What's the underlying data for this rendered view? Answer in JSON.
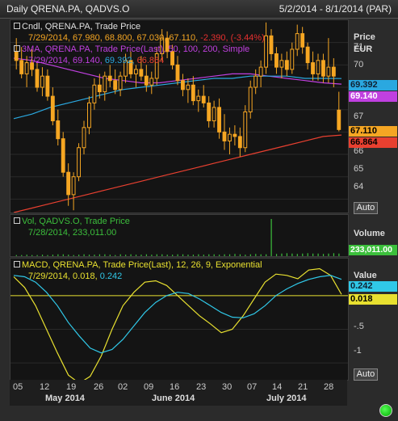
{
  "window": {
    "title": "Daily QRENA.PA, QADVS.O",
    "range": "5/2/2014 - 8/1/2014 (PAR)"
  },
  "price_pane": {
    "legend1": "Cndl, QRENA.PA, Trade Price",
    "legend1_values_a": "7/29/2014, 67.980, 68.800, 67.030, 67.110,",
    "legend1_values_b": "-2.390, (-3.44%)",
    "legend2": "3MA, QRENA.PA, Trade Price(Last), 50, 100, 200, Simple",
    "legend2_values_a": "7/29/2014, 69.140,",
    "legend2_values_b": "69.392,",
    "legend2_values_c": "66.864",
    "axis_title": "Price",
    "axis_unit": "EUR",
    "ticks": [
      "71",
      "70",
      "69",
      "68",
      "67",
      "66",
      "65",
      "64"
    ],
    "tag_ma100": "69.392",
    "tag_ma50": "69.140",
    "tag_last": "67.110",
    "tag_ma200": "66.864",
    "auto_label": "Auto"
  },
  "vol_pane": {
    "legend": "Vol, QADVS.O, Trade Price",
    "legend_values": "7/28/2014, 233,011.00",
    "axis_title": "Volume",
    "tag": "233,011.00"
  },
  "macd_pane": {
    "legend": "MACD, QRENA.PA, Trade Price(Last),  12, 26, 9, Exponential",
    "legend_values_a": "7/29/2014, 0.018,",
    "legend_values_b": "0.242",
    "axis_title": "Value",
    "ticks": [
      "0",
      "-.5",
      "-1"
    ],
    "tag_signal": "0.242",
    "tag_macd": "0.018",
    "auto_label": "Auto"
  },
  "x_axis": {
    "days": [
      "05",
      "12",
      "19",
      "26",
      "02",
      "09",
      "16",
      "23",
      "30",
      "07",
      "14",
      "21",
      "28"
    ],
    "months": [
      "May 2014",
      "June 2014",
      "July 2014"
    ]
  },
  "colors": {
    "candle": "#f5a623",
    "ma50": "#c040e0",
    "ma100": "#2aa8e0",
    "ma200": "#e84030",
    "volume": "#3cbf3c",
    "macd": "#e8e030",
    "signal": "#30c8e8",
    "down_text": "#e83030"
  },
  "chart_data": [
    {
      "type": "candlestick",
      "title": "Cndl, QRENA.PA, Trade Price",
      "ylabel": "Price EUR",
      "ylim": [
        63.4,
        72
      ],
      "last": {
        "date": "7/29/2014",
        "open": 67.98,
        "high": 68.8,
        "low": 67.03,
        "close": 67.11,
        "change": -2.39,
        "change_pct": -3.44
      },
      "candles": [
        [
          70.6,
          71.2,
          69.8,
          70.2
        ],
        [
          70.2,
          70.8,
          69.4,
          69.6
        ],
        [
          69.6,
          70.4,
          69.0,
          70.1
        ],
        [
          70.1,
          70.7,
          69.5,
          69.8
        ],
        [
          69.8,
          70.1,
          68.8,
          69.0
        ],
        [
          69.0,
          69.9,
          68.6,
          69.5
        ],
        [
          69.5,
          69.8,
          68.4,
          68.6
        ],
        [
          68.6,
          69.0,
          67.3,
          67.5
        ],
        [
          67.5,
          68.0,
          66.4,
          66.7
        ],
        [
          66.7,
          67.0,
          65.0,
          65.2
        ],
        [
          65.2,
          65.6,
          63.7,
          64.2
        ],
        [
          64.2,
          65.2,
          63.5,
          65.0
        ],
        [
          65.0,
          66.5,
          64.8,
          66.3
        ],
        [
          66.3,
          67.5,
          66.0,
          67.2
        ],
        [
          67.2,
          68.6,
          66.9,
          68.3
        ],
        [
          68.3,
          69.4,
          68.0,
          69.1
        ],
        [
          69.1,
          69.6,
          68.5,
          68.8
        ],
        [
          68.8,
          69.7,
          68.4,
          69.5
        ],
        [
          69.5,
          70.0,
          69.0,
          69.3
        ],
        [
          69.3,
          69.8,
          68.7,
          68.9
        ],
        [
          68.9,
          69.7,
          68.6,
          69.5
        ],
        [
          69.5,
          70.5,
          69.2,
          70.2
        ],
        [
          70.2,
          70.6,
          69.4,
          69.6
        ],
        [
          69.6,
          70.0,
          69.0,
          69.8
        ],
        [
          69.8,
          70.4,
          69.3,
          69.5
        ],
        [
          69.5,
          70.0,
          68.8,
          69.1
        ],
        [
          69.1,
          69.7,
          68.7,
          69.4
        ],
        [
          69.4,
          70.8,
          69.1,
          70.5
        ],
        [
          70.5,
          71.6,
          70.2,
          71.2
        ],
        [
          71.2,
          71.5,
          70.3,
          70.6
        ],
        [
          70.6,
          70.9,
          69.8,
          70.0
        ],
        [
          70.0,
          70.4,
          69.1,
          69.3
        ],
        [
          69.3,
          69.6,
          68.6,
          68.9
        ],
        [
          68.9,
          69.4,
          68.3,
          69.1
        ],
        [
          69.1,
          69.5,
          68.2,
          68.4
        ],
        [
          68.4,
          68.9,
          67.9,
          68.6
        ],
        [
          68.6,
          69.1,
          68.1,
          68.3
        ],
        [
          68.3,
          68.6,
          67.2,
          67.5
        ],
        [
          67.5,
          68.4,
          67.2,
          68.1
        ],
        [
          68.1,
          68.5,
          66.7,
          67.0
        ],
        [
          67.0,
          67.8,
          66.2,
          66.6
        ],
        [
          66.6,
          67.2,
          66.0,
          66.9
        ],
        [
          66.9,
          67.3,
          66.4,
          66.8
        ],
        [
          66.8,
          67.2,
          65.9,
          66.3
        ],
        [
          66.3,
          68.2,
          66.1,
          67.9
        ],
        [
          67.9,
          69.3,
          67.6,
          69.0
        ],
        [
          69.0,
          69.8,
          68.7,
          69.5
        ],
        [
          69.5,
          70.2,
          69.0,
          69.9
        ],
        [
          69.9,
          71.9,
          69.6,
          71.3
        ],
        [
          71.3,
          71.6,
          70.2,
          70.5
        ],
        [
          70.5,
          70.8,
          69.6,
          69.9
        ],
        [
          69.9,
          70.5,
          69.4,
          70.2
        ],
        [
          70.2,
          70.6,
          69.5,
          69.8
        ],
        [
          69.8,
          71.0,
          69.6,
          70.7
        ],
        [
          70.7,
          71.8,
          70.4,
          71.4
        ],
        [
          71.4,
          71.7,
          70.5,
          70.8
        ],
        [
          70.8,
          71.0,
          69.8,
          70.1
        ],
        [
          70.1,
          70.6,
          69.3,
          69.6
        ],
        [
          69.6,
          70.5,
          69.3,
          70.2
        ],
        [
          70.2,
          70.5,
          69.2,
          69.5
        ],
        [
          69.5,
          71.2,
          69.2,
          69.9
        ],
        [
          69.9,
          70.3,
          69.0,
          69.5
        ],
        [
          67.98,
          68.8,
          67.03,
          67.11
        ]
      ]
    },
    {
      "type": "line",
      "title": "3MA, QRENA.PA, Trade Price(Last), 50, 100, 200, Simple",
      "series": [
        {
          "name": "50",
          "last": 69.14,
          "values": [
            70.3,
            70.2,
            70.0,
            69.8,
            69.6,
            69.4,
            69.3,
            69.2,
            69.2,
            69.3,
            69.4,
            69.5,
            69.6,
            69.6,
            69.5,
            69.4,
            69.3,
            69.2,
            69.14
          ]
        },
        {
          "name": "100",
          "last": 69.392,
          "values": [
            67.6,
            67.8,
            68.1,
            68.3,
            68.5,
            68.7,
            68.9,
            69.0,
            69.1,
            69.2,
            69.3,
            69.4,
            69.4,
            69.5,
            69.5,
            69.5,
            69.4,
            69.4,
            69.392
          ]
        },
        {
          "name": "200",
          "last": 66.864,
          "values": [
            63.4,
            63.6,
            63.8,
            64.0,
            64.2,
            64.4,
            64.6,
            64.8,
            65.0,
            65.2,
            65.4,
            65.6,
            65.8,
            66.0,
            66.2,
            66.4,
            66.6,
            66.8,
            66.864
          ]
        }
      ]
    },
    {
      "type": "bar",
      "title": "Vol, QADVS.O, Trade Price",
      "last": {
        "date": "7/28/2014",
        "value": 233011.0
      },
      "values": [
        0.03,
        0.03,
        0.04,
        0.03,
        0.03,
        0.04,
        0.03,
        0.04,
        0.05,
        0.05,
        0.04,
        0.03,
        0.04,
        0.05,
        0.04,
        0.04,
        0.05,
        0.05,
        0.04,
        0.03,
        0.05,
        0.04,
        0.05,
        0.04,
        0.04,
        0.05,
        0.04,
        0.05,
        0.05,
        0.04,
        0.04,
        0.05,
        0.05,
        0.04,
        0.04,
        0.05,
        0.04,
        0.05,
        0.05,
        0.04,
        0.05,
        0.05,
        0.06,
        0.05,
        0.04,
        0.05,
        0.06,
        0.05,
        0.05,
        1.0,
        0.06,
        0.07,
        0.08,
        0.07,
        0.06,
        0.07,
        0.08,
        0.07,
        0.07,
        0.06,
        0.07,
        0.08,
        0.07
      ]
    },
    {
      "type": "line",
      "title": "MACD, QRENA.PA, Trade Price(Last), 12, 26, 9, Exponential",
      "ylim": [
        -1.25,
        0.55
      ],
      "series": [
        {
          "name": "MACD",
          "last": 0.018,
          "values": [
            0.28,
            0.12,
            -0.15,
            -0.5,
            -0.85,
            -1.18,
            -1.3,
            -1.2,
            -0.9,
            -0.5,
            -0.15,
            0.05,
            0.2,
            0.22,
            0.15,
            0.0,
            -0.15,
            -0.3,
            -0.42,
            -0.55,
            -0.5,
            -0.3,
            -0.05,
            0.2,
            0.32,
            0.3,
            0.25,
            0.38,
            0.4,
            0.3,
            0.018
          ]
        },
        {
          "name": "Signal",
          "last": 0.242,
          "values": [
            0.3,
            0.28,
            0.2,
            0.05,
            -0.15,
            -0.4,
            -0.6,
            -0.78,
            -0.85,
            -0.8,
            -0.65,
            -0.45,
            -0.25,
            -0.1,
            0.0,
            0.05,
            0.03,
            -0.05,
            -0.15,
            -0.25,
            -0.32,
            -0.33,
            -0.27,
            -0.15,
            0.0,
            0.1,
            0.18,
            0.24,
            0.28,
            0.3,
            0.242
          ]
        }
      ]
    }
  ]
}
